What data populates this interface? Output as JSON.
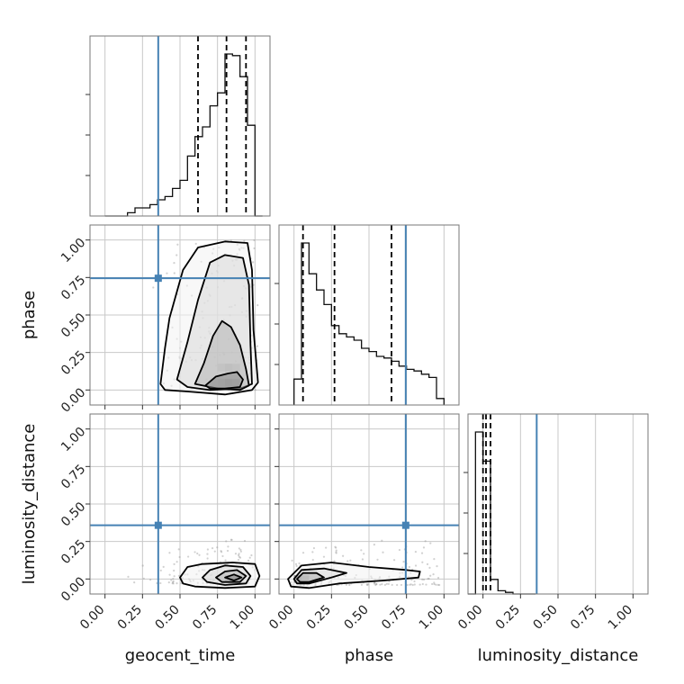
{
  "chart_data": {
    "type": "corner",
    "parameters": [
      "geocent_time",
      "phase",
      "luminosity_distance"
    ],
    "axis_labels": {
      "bottom": [
        "geocent_time",
        "phase",
        "luminosity_distance"
      ],
      "left": [
        "phase",
        "luminosity_distance"
      ]
    },
    "tick_labels": [
      "0.00",
      "0.25",
      "0.50",
      "0.75",
      "1.00"
    ],
    "range": [
      -0.1,
      1.1
    ],
    "grid": true,
    "injection_color": "#4682b4",
    "injection": {
      "geocent_time": 0.355,
      "phase": 0.745,
      "luminosity_distance": 0.358
    },
    "histograms": {
      "geocent_time": {
        "edges": [
          0.0,
          0.05,
          0.1,
          0.15,
          0.2,
          0.25,
          0.3,
          0.35,
          0.4,
          0.45,
          0.5,
          0.55,
          0.6,
          0.65,
          0.7,
          0.75,
          0.8,
          0.85,
          0.9,
          0.95,
          1.0,
          1.05
        ],
        "counts": [
          0.0,
          0.0,
          0.0,
          0.02,
          0.05,
          0.05,
          0.07,
          0.1,
          0.12,
          0.17,
          0.22,
          0.37,
          0.49,
          0.55,
          0.68,
          0.76,
          1.0,
          0.99,
          0.86,
          0.56,
          0.0
        ],
        "quantiles": [
          0.62,
          0.81,
          0.94
        ]
      },
      "phase": {
        "edges": [
          0.0,
          0.05,
          0.1,
          0.15,
          0.2,
          0.25,
          0.3,
          0.35,
          0.4,
          0.45,
          0.5,
          0.55,
          0.6,
          0.65,
          0.7,
          0.75,
          0.8,
          0.85,
          0.9,
          0.95,
          1.0
        ],
        "counts": [
          0.16,
          1.0,
          0.81,
          0.71,
          0.62,
          0.49,
          0.44,
          0.42,
          0.4,
          0.35,
          0.33,
          0.3,
          0.29,
          0.27,
          0.24,
          0.22,
          0.21,
          0.19,
          0.17,
          0.04
        ],
        "quantiles": [
          0.06,
          0.27,
          0.65
        ]
      },
      "luminosity_distance": {
        "edges": [
          -0.1,
          -0.05,
          0.0,
          0.05,
          0.1,
          0.15,
          0.2,
          0.25,
          0.3,
          0.35
        ],
        "counts": [
          0.0,
          1.0,
          0.82,
          0.09,
          0.02,
          0.01,
          0.0,
          0.0,
          0.0
        ],
        "quantiles": [
          0.0,
          0.02,
          0.05
        ]
      }
    },
    "densities": {
      "phase_vs_geocent_time": {
        "contours": [
          [
            [
              0.37,
              0.04
            ],
            [
              0.4,
              0.28
            ],
            [
              0.43,
              0.48
            ],
            [
              0.52,
              0.8
            ],
            [
              0.62,
              0.95
            ],
            [
              0.8,
              0.99
            ],
            [
              0.95,
              0.98
            ],
            [
              0.98,
              0.8
            ],
            [
              0.99,
              0.4
            ],
            [
              1.02,
              0.05
            ],
            [
              0.98,
              0.0
            ],
            [
              0.8,
              -0.03
            ],
            [
              0.55,
              -0.01
            ],
            [
              0.4,
              0.0
            ]
          ],
          [
            [
              0.48,
              0.07
            ],
            [
              0.55,
              0.32
            ],
            [
              0.62,
              0.6
            ],
            [
              0.7,
              0.85
            ],
            [
              0.8,
              0.9
            ],
            [
              0.92,
              0.88
            ],
            [
              0.96,
              0.7
            ],
            [
              0.97,
              0.3
            ],
            [
              0.98,
              0.04
            ],
            [
              0.9,
              0.01
            ],
            [
              0.7,
              0.0
            ],
            [
              0.55,
              0.02
            ]
          ],
          [
            [
              0.6,
              0.04
            ],
            [
              0.66,
              0.18
            ],
            [
              0.72,
              0.36
            ],
            [
              0.78,
              0.46
            ],
            [
              0.84,
              0.42
            ],
            [
              0.9,
              0.3
            ],
            [
              0.94,
              0.14
            ],
            [
              0.96,
              0.03
            ],
            [
              0.9,
              0.0
            ],
            [
              0.75,
              0.01
            ]
          ],
          [
            [
              0.67,
              0.03
            ],
            [
              0.74,
              0.09
            ],
            [
              0.82,
              0.11
            ],
            [
              0.88,
              0.12
            ],
            [
              0.92,
              0.07
            ],
            [
              0.9,
              0.02
            ],
            [
              0.8,
              0.01
            ],
            [
              0.7,
              0.01
            ]
          ]
        ]
      },
      "luminosity_distance_vs_geocent_time": {
        "contours": [
          [
            [
              0.5,
              0.01
            ],
            [
              0.55,
              0.08
            ],
            [
              0.65,
              0.1
            ],
            [
              0.85,
              0.11
            ],
            [
              1.0,
              0.1
            ],
            [
              1.03,
              0.02
            ],
            [
              1.0,
              -0.05
            ],
            [
              0.8,
              -0.06
            ],
            [
              0.6,
              -0.05
            ],
            [
              0.52,
              -0.03
            ]
          ],
          [
            [
              0.65,
              0.01
            ],
            [
              0.7,
              0.06
            ],
            [
              0.8,
              0.09
            ],
            [
              0.92,
              0.08
            ],
            [
              0.97,
              0.02
            ],
            [
              0.94,
              -0.03
            ],
            [
              0.8,
              -0.04
            ],
            [
              0.68,
              -0.02
            ]
          ],
          [
            [
              0.74,
              0.01
            ],
            [
              0.8,
              0.05
            ],
            [
              0.88,
              0.06
            ],
            [
              0.94,
              0.02
            ],
            [
              0.9,
              -0.02
            ],
            [
              0.78,
              -0.02
            ]
          ],
          [
            [
              0.8,
              0.01
            ],
            [
              0.86,
              0.03
            ],
            [
              0.91,
              0.01
            ],
            [
              0.86,
              -0.01
            ]
          ]
        ]
      },
      "luminosity_distance_vs_phase": {
        "contours": [
          [
            [
              -0.04,
              0.0
            ],
            [
              0.05,
              0.09
            ],
            [
              0.25,
              0.11
            ],
            [
              0.5,
              0.08
            ],
            [
              0.75,
              0.06
            ],
            [
              0.84,
              0.05
            ],
            [
              0.83,
              0.01
            ],
            [
              0.6,
              -0.01
            ],
            [
              0.3,
              -0.03
            ],
            [
              0.1,
              -0.06
            ],
            [
              -0.02,
              -0.05
            ]
          ],
          [
            [
              0.0,
              0.0
            ],
            [
              0.05,
              0.06
            ],
            [
              0.2,
              0.07
            ],
            [
              0.35,
              0.04
            ],
            [
              0.25,
              0.01
            ],
            [
              0.1,
              -0.03
            ],
            [
              0.02,
              -0.03
            ]
          ],
          [
            [
              0.02,
              0.0
            ],
            [
              0.06,
              0.04
            ],
            [
              0.15,
              0.04
            ],
            [
              0.2,
              0.01
            ],
            [
              0.1,
              -0.02
            ],
            [
              0.04,
              -0.02
            ]
          ]
        ]
      }
    },
    "density_cells": {
      "phase_vs_geocent_time": [
        {
          "x": 0.825,
          "y": 0.05,
          "v": 0.9
        },
        {
          "x": 0.775,
          "y": 0.05,
          "v": 0.55
        },
        {
          "x": 0.875,
          "y": 0.05,
          "v": 0.7
        },
        {
          "x": 0.825,
          "y": 0.15,
          "v": 0.5
        },
        {
          "x": 0.875,
          "y": 0.15,
          "v": 0.4
        },
        {
          "x": 0.775,
          "y": 0.15,
          "v": 0.35
        },
        {
          "x": 0.725,
          "y": 0.05,
          "v": 0.3
        }
      ],
      "luminosity_distance_vs_geocent_time": [
        {
          "x": 0.825,
          "y": 0.0,
          "v": 0.7
        },
        {
          "x": 0.875,
          "y": 0.0,
          "v": 0.85
        }
      ],
      "luminosity_distance_vs_phase": [
        {
          "x": 0.025,
          "y": 0.0,
          "v": 0.9
        },
        {
          "x": 0.075,
          "y": 0.0,
          "v": 0.6
        }
      ]
    }
  }
}
